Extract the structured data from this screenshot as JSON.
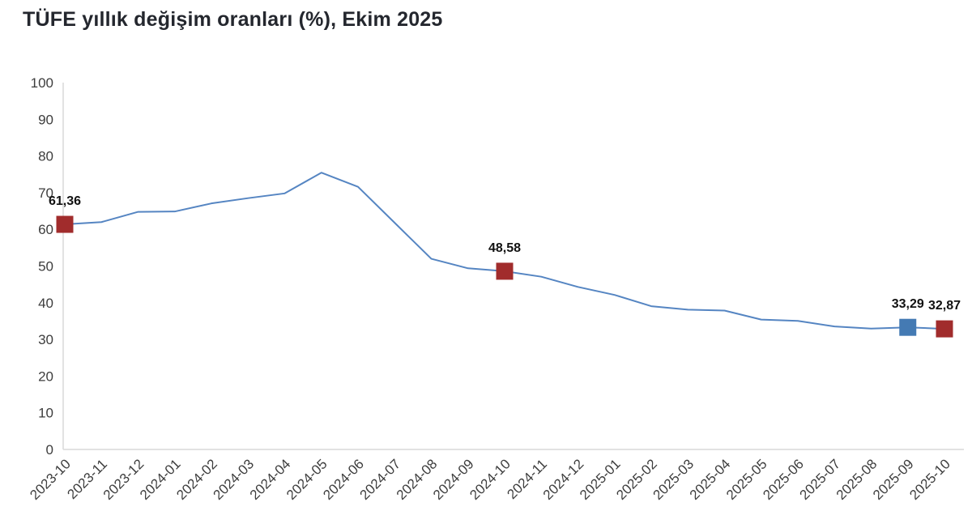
{
  "title": "TÜFE yıllık değişim oranları (%), Ekim 2025",
  "chart_data": {
    "type": "line",
    "title": "TÜFE yıllık değişim oranları (%), Ekim 2025",
    "xlabel": "",
    "ylabel": "",
    "ylim": [
      0,
      100
    ],
    "ytick_step": 10,
    "grid": false,
    "legend": "none",
    "x": [
      "2023-10",
      "2023-11",
      "2023-12",
      "2024-01",
      "2024-02",
      "2024-03",
      "2024-04",
      "2024-05",
      "2024-06",
      "2024-07",
      "2024-08",
      "2024-09",
      "2024-10",
      "2024-11",
      "2024-12",
      "2025-01",
      "2025-02",
      "2025-03",
      "2025-04",
      "2025-05",
      "2025-06",
      "2025-07",
      "2025-08",
      "2025-09",
      "2025-10"
    ],
    "series": [
      {
        "name": "TÜFE yıllık değişim oranı (%)",
        "values": [
          61.36,
          61.98,
          64.77,
          64.86,
          67.07,
          68.5,
          69.8,
          75.45,
          71.6,
          61.78,
          51.97,
          49.38,
          48.58,
          47.09,
          44.3,
          42.12,
          39.05,
          38.1,
          37.86,
          35.41,
          35.05,
          33.52,
          32.95,
          33.29,
          32.87
        ]
      }
    ],
    "annotations": [
      {
        "x": "2023-10",
        "value": 61.36,
        "label": "61,36",
        "marker": "square",
        "color": "#A12C2C"
      },
      {
        "x": "2024-10",
        "value": 48.58,
        "label": "48,58",
        "marker": "square",
        "color": "#A12C2C"
      },
      {
        "x": "2025-09",
        "value": 33.29,
        "label": "33,29",
        "marker": "square",
        "color": "#447AB3"
      },
      {
        "x": "2025-10",
        "value": 32.87,
        "label": "32,87",
        "marker": "square",
        "color": "#A12C2C"
      }
    ],
    "colors": {
      "line": "#5585C2",
      "marker_red": "#A12C2C",
      "marker_blue": "#447AB3",
      "axis_line": "#d9d9d9",
      "tick_text": "#3d3d3d",
      "point_label_text": "#111111",
      "title_text": "#24272e",
      "background": "#ffffff"
    }
  }
}
